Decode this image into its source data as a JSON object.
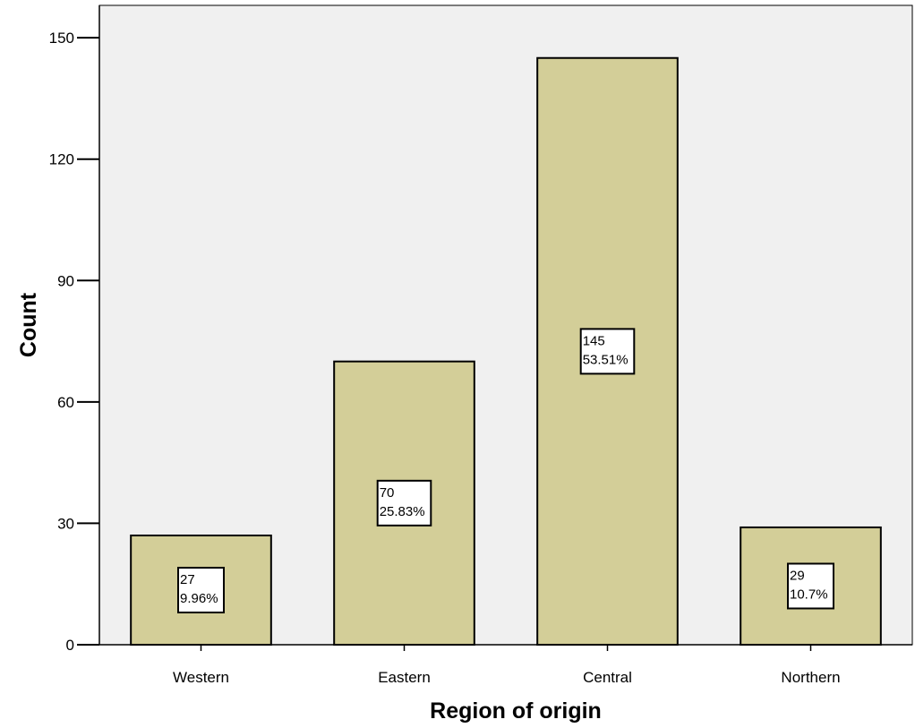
{
  "chart_data": {
    "type": "bar",
    "xlabel": "Region of origin",
    "ylabel": "Count",
    "categories": [
      "Western",
      "Eastern",
      "Central",
      "Northern"
    ],
    "values": [
      27,
      70,
      145,
      29
    ],
    "labels": [
      {
        "count": "27",
        "percent": "9.96%"
      },
      {
        "count": "70",
        "percent": "25.83%"
      },
      {
        "count": "145",
        "percent": "53.51%"
      },
      {
        "count": "29",
        "percent": "10.7%"
      }
    ],
    "ylim": [
      0,
      158
    ],
    "yticks": [
      0,
      30,
      60,
      90,
      120,
      150
    ],
    "grid": false,
    "legend": "none",
    "colors": {
      "bar_fill": "#D3CE98",
      "bar_stroke": "#000000",
      "plot_background": "#F0F0F0",
      "label_background": "#FFFFFF"
    }
  }
}
